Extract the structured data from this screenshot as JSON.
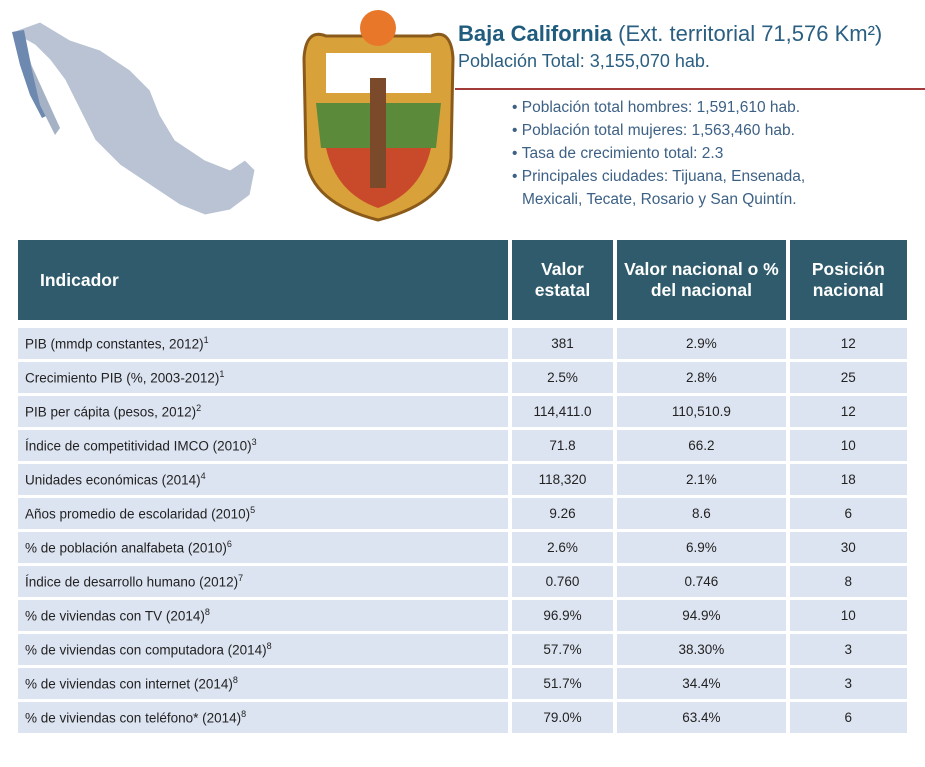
{
  "header": {
    "title": "Baja California",
    "subtitle": "(Ext. territorial 71,576 Km²)",
    "population": "Población Total: 3,155,070 hab.",
    "bullets": [
      "Población total hombres: 1,591,610 hab.",
      "Población total mujeres: 1,563,460 hab.",
      "Tasa de crecimiento total:  2.3",
      "Principales ciudades: Tijuana, Ensenada,",
      "Mexicali, Tecate, Rosario y San Quintín."
    ]
  },
  "table": {
    "columns": [
      "Indicador",
      "Valor estatal",
      "Valor nacional o % del nacional",
      "Posición nacional"
    ],
    "rows": [
      {
        "label": "PIB (mmdp constantes, 2012)",
        "note": "1",
        "values": [
          "381",
          "2.9%",
          "12"
        ]
      },
      {
        "label": "Crecimiento PIB (%, 2003-2012)",
        "note": "1",
        "values": [
          "2.5%",
          "2.8%",
          "25"
        ]
      },
      {
        "label": "PIB per cápita (pesos, 2012)",
        "note": "2",
        "values": [
          "114,411.0",
          "110,510.9",
          "12"
        ]
      },
      {
        "label": "Índice de competitividad IMCO (2010)",
        "note": "3",
        "values": [
          "71.8",
          "66.2",
          "10"
        ]
      },
      {
        "label": "Unidades económicas (2014)",
        "note": "4",
        "values": [
          "118,320",
          "2.1%",
          "18"
        ]
      },
      {
        "label": "Años promedio de escolaridad (2010)",
        "note": "5",
        "values": [
          "9.26",
          "8.6",
          "6"
        ]
      },
      {
        "label": "% de población analfabeta (2010)",
        "note": "6",
        "values": [
          "2.6%",
          "6.9%",
          "30"
        ]
      },
      {
        "label": "Índice de desarrollo humano (2012)",
        "note": "7",
        "values": [
          "0.760",
          "0.746",
          "8"
        ]
      },
      {
        "label": "% de viviendas con TV (2014)",
        "note": "8",
        "values": [
          "96.9%",
          "94.9%",
          "10"
        ]
      },
      {
        "label": "% de viviendas con computadora (2014)",
        "note": "8",
        "values": [
          "57.7%",
          "38.30%",
          "3"
        ]
      },
      {
        "label": "% de viviendas con internet (2014)",
        "note": "8",
        "values": [
          "51.7%",
          "34.4%",
          "3"
        ]
      },
      {
        "label": "% de viviendas con teléfono* (2014)",
        "note": "8",
        "values": [
          "79.0%",
          "63.4%",
          "6"
        ]
      }
    ]
  }
}
